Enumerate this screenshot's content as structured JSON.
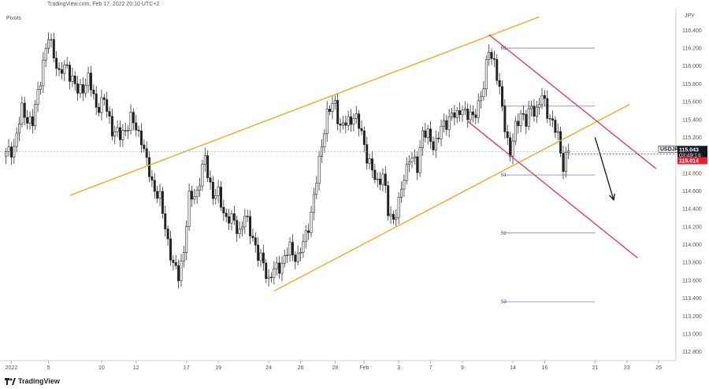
{
  "header": {
    "source_line": "TradingView.com, Feb 17, 2022 20:10 UTC+2",
    "indicator": "Pivots",
    "axis_unit": "JPY",
    "footer_brand": "TradingView"
  },
  "colors": {
    "bull": "#222222",
    "bear": "#222222",
    "channel_up": "#f5a623",
    "channel_down": "#e0405a",
    "pivot": "#7a7ab8",
    "price_tag": "#131722",
    "bid_tag": "#e8212e"
  },
  "chart_data": {
    "type": "candlestick",
    "symbol": "USDJPY",
    "ylim": [
      112.7,
      116.65
    ],
    "y_ticks": [
      116.4,
      116.2,
      116.0,
      115.8,
      115.6,
      115.4,
      115.2,
      115.0,
      114.8,
      114.6,
      114.4,
      114.2,
      114.0,
      113.8,
      113.6,
      113.4,
      113.2,
      113.0,
      112.8
    ],
    "y_tick_labels": [
      "116.400",
      "116.200",
      "116.000",
      "115.800",
      "115.600",
      "115.400",
      "115.200",
      "115.000",
      "114.800",
      "114.600",
      "114.400",
      "114.200",
      "114.000",
      "113.800",
      "113.600",
      "113.400",
      "113.200",
      "113.000",
      "112.800"
    ],
    "x_ticks": [
      "2022",
      "5",
      "10",
      "12",
      "17",
      "19",
      "24",
      "26",
      "28",
      "Feb",
      "3",
      "7",
      "9",
      "14",
      "16",
      "21",
      "23",
      "25"
    ],
    "bar_count": 250,
    "x_tick_bars": [
      2,
      16,
      36,
      49,
      68,
      80,
      99,
      111,
      124,
      135,
      148,
      160,
      172,
      191,
      203,
      222,
      234,
      246
    ],
    "pivot_levels": [
      {
        "label": "R1",
        "value": 116.2
      },
      {
        "label": "P",
        "value": 115.55
      },
      {
        "label": "S1",
        "value": 114.78
      },
      {
        "label": "S2",
        "value": 114.13
      },
      {
        "label": "S3",
        "value": 113.36
      }
    ],
    "pivot_bar_range": [
      187,
      222
    ],
    "last_price": {
      "symbol": "USDJPY",
      "price": "115.043",
      "countdown": "03:49:14",
      "bid": "115.014"
    },
    "trendlines": [
      {
        "name": "ascending-channel-top",
        "bar_from": 24,
        "value_from": 114.55,
        "bar_to": 201,
        "value_to": 116.55,
        "color": "#f5a623"
      },
      {
        "name": "ascending-channel-bottom",
        "bar_from": 101,
        "value_from": 113.48,
        "bar_to": 235,
        "value_to": 115.57,
        "color": "#f5a623"
      },
      {
        "name": "descending-channel-top",
        "bar_from": 182,
        "value_from": 116.35,
        "bar_to": 245,
        "value_to": 114.85,
        "color": "#e0405a"
      },
      {
        "name": "descending-channel-bottom",
        "bar_from": 174,
        "value_from": 115.38,
        "bar_to": 238,
        "value_to": 113.85,
        "color": "#e0405a"
      }
    ],
    "forecast_arrow": {
      "bar_from": 222,
      "value_from": 115.2,
      "bar_to": 229,
      "value_to": 114.5
    },
    "anchors": [
      [
        0,
        115.0
      ],
      [
        3,
        115.1
      ],
      [
        6,
        115.5
      ],
      [
        10,
        115.35
      ],
      [
        14,
        116.05
      ],
      [
        16,
        116.3
      ],
      [
        18,
        116.15
      ],
      [
        20,
        115.9
      ],
      [
        23,
        116.0
      ],
      [
        27,
        115.7
      ],
      [
        31,
        115.85
      ],
      [
        34,
        115.55
      ],
      [
        37,
        115.6
      ],
      [
        40,
        115.3
      ],
      [
        43,
        115.2
      ],
      [
        47,
        115.4
      ],
      [
        51,
        115.2
      ],
      [
        53,
        114.9
      ],
      [
        55,
        114.7
      ],
      [
        58,
        114.5
      ],
      [
        61,
        114.05
      ],
      [
        63,
        113.75
      ],
      [
        65,
        113.65
      ],
      [
        67,
        113.95
      ],
      [
        69,
        114.5
      ],
      [
        72,
        114.6
      ],
      [
        75,
        114.95
      ],
      [
        78,
        114.55
      ],
      [
        80,
        114.55
      ],
      [
        83,
        114.3
      ],
      [
        86,
        114.25
      ],
      [
        88,
        114.15
      ],
      [
        90,
        114.3
      ],
      [
        93,
        114.1
      ],
      [
        95,
        113.85
      ],
      [
        97,
        113.8
      ],
      [
        99,
        113.6
      ],
      [
        101,
        113.7
      ],
      [
        104,
        113.8
      ],
      [
        107,
        113.95
      ],
      [
        110,
        113.85
      ],
      [
        112,
        114.0
      ],
      [
        115,
        114.35
      ],
      [
        117,
        114.7
      ],
      [
        119,
        115.15
      ],
      [
        121,
        115.45
      ],
      [
        124,
        115.6
      ],
      [
        126,
        115.3
      ],
      [
        128,
        115.35
      ],
      [
        131,
        115.45
      ],
      [
        134,
        115.25
      ],
      [
        136,
        115.0
      ],
      [
        138,
        114.8
      ],
      [
        140,
        114.7
      ],
      [
        142,
        114.8
      ],
      [
        144,
        114.35
      ],
      [
        146,
        114.3
      ],
      [
        148,
        114.45
      ],
      [
        150,
        114.75
      ],
      [
        152,
        115.0
      ],
      [
        155,
        114.85
      ],
      [
        157,
        115.3
      ],
      [
        159,
        115.2
      ],
      [
        161,
        115.1
      ],
      [
        163,
        115.25
      ],
      [
        166,
        115.35
      ],
      [
        168,
        115.5
      ],
      [
        170,
        115.4
      ],
      [
        172,
        115.55
      ],
      [
        174,
        115.45
      ],
      [
        176,
        115.4
      ],
      [
        178,
        115.6
      ],
      [
        180,
        115.75
      ],
      [
        182,
        116.2
      ],
      [
        184,
        116.05
      ],
      [
        186,
        115.7
      ],
      [
        188,
        115.35
      ],
      [
        190,
        115.0
      ],
      [
        192,
        115.3
      ],
      [
        194,
        115.5
      ],
      [
        196,
        115.35
      ],
      [
        198,
        115.55
      ],
      [
        200,
        115.5
      ],
      [
        202,
        115.65
      ],
      [
        204,
        115.5
      ],
      [
        206,
        115.35
      ],
      [
        208,
        115.2
      ],
      [
        210,
        114.9
      ],
      [
        212,
        115.05
      ]
    ]
  }
}
